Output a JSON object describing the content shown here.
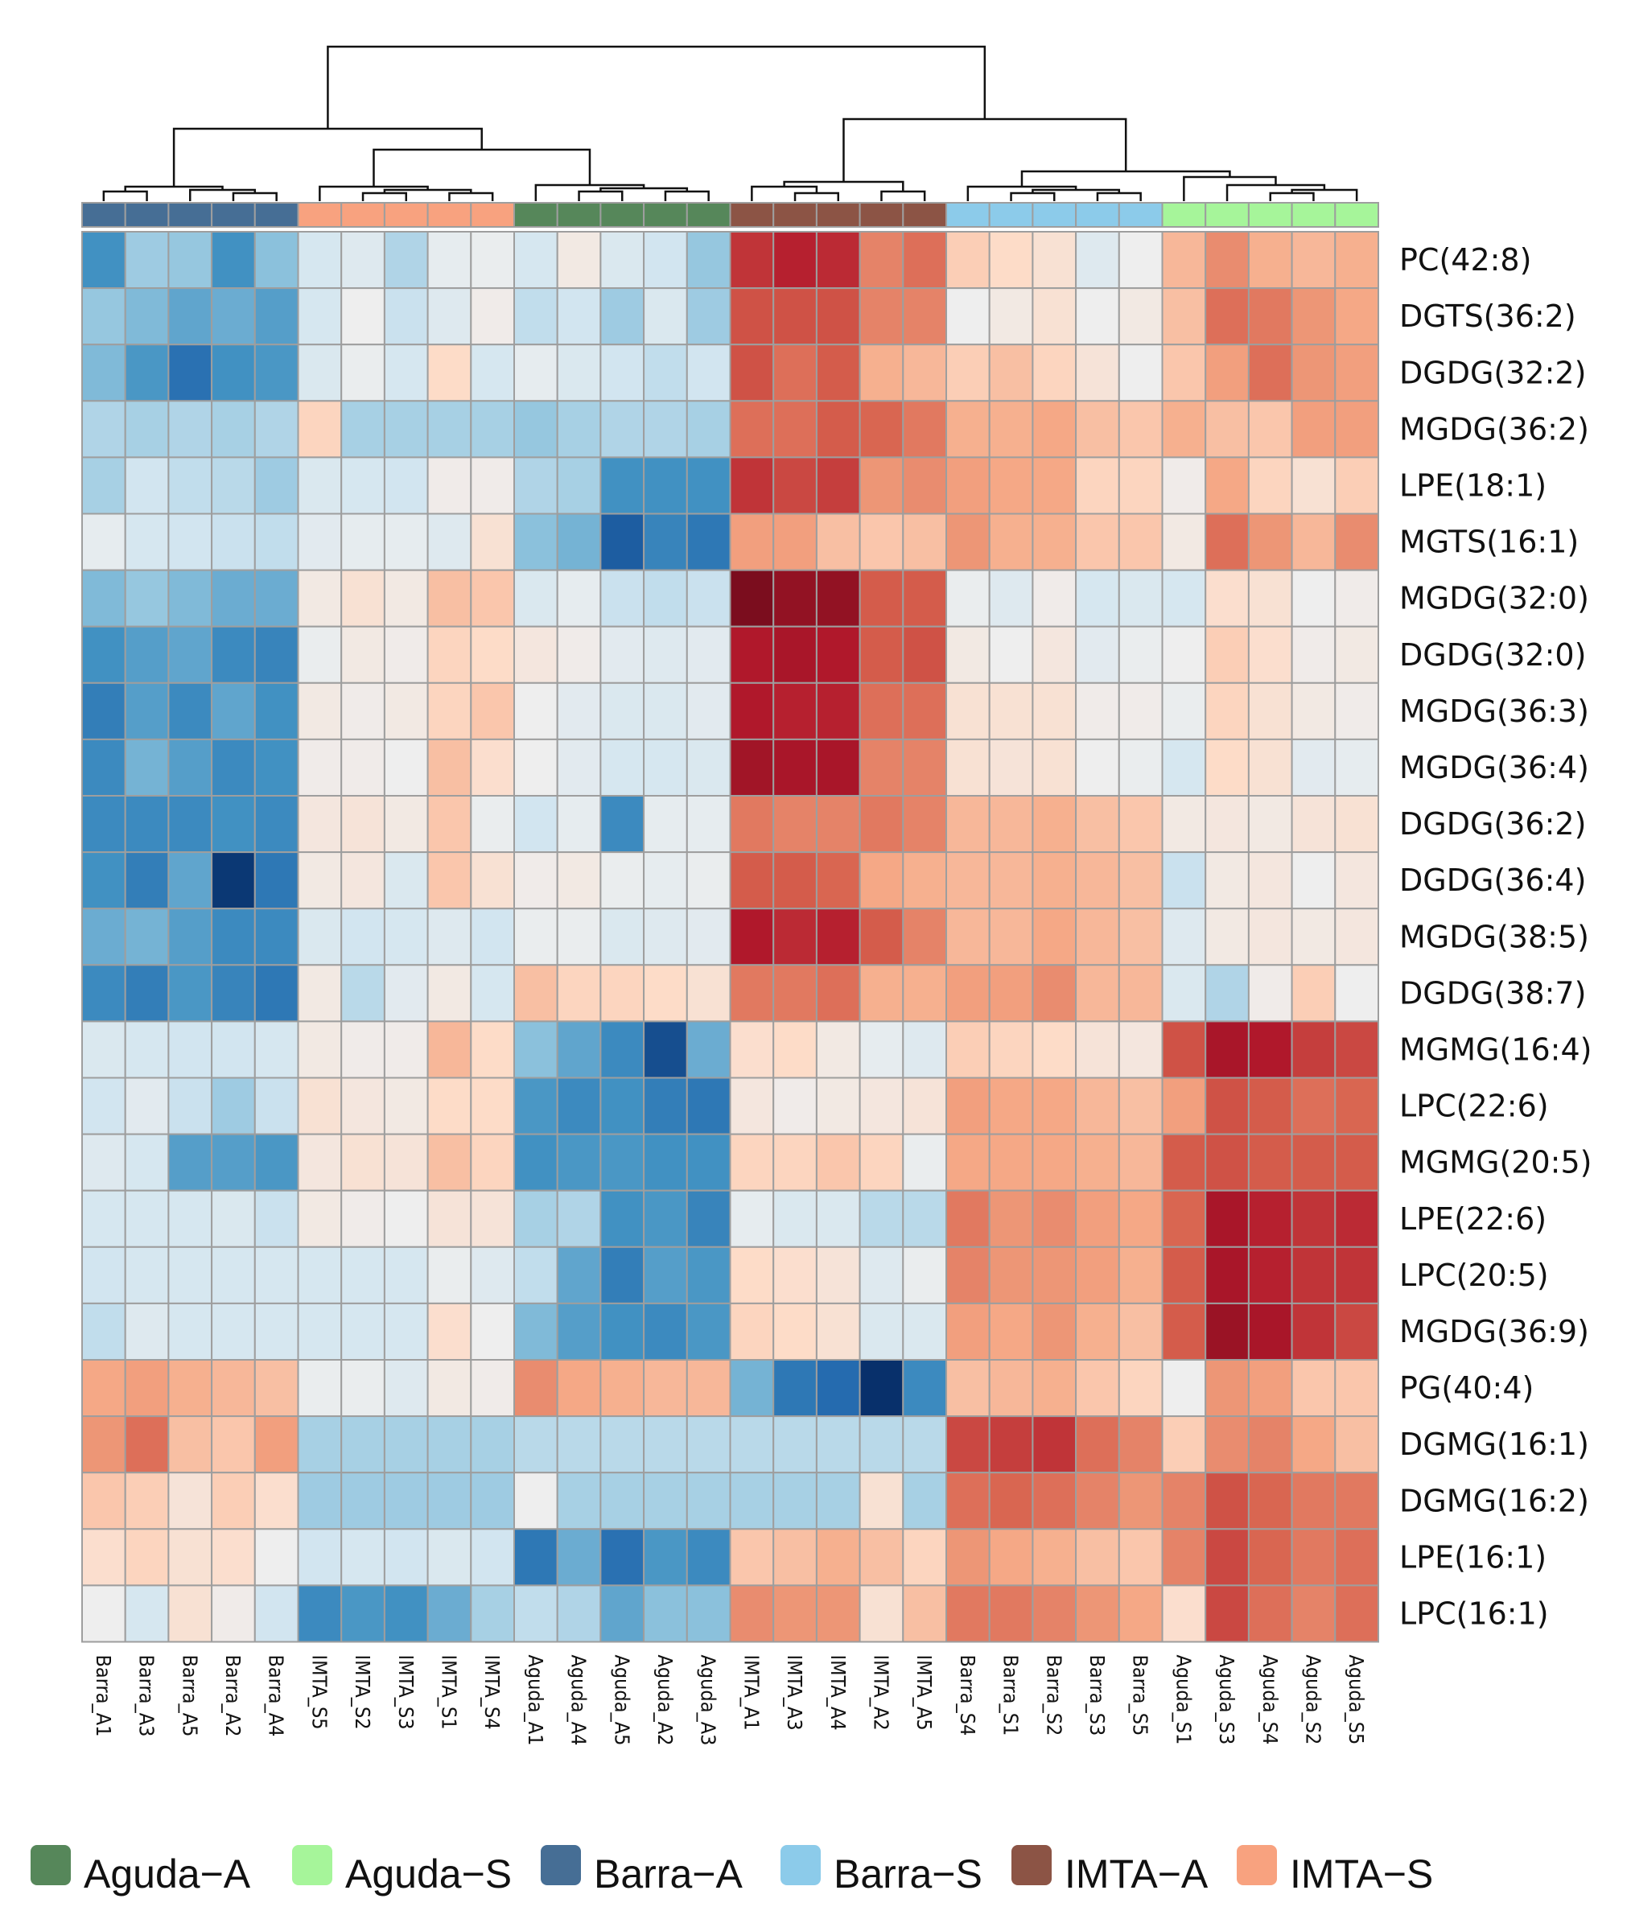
{
  "chart_data": {
    "type": "heatmap",
    "title": "",
    "columns": [
      "Barra_A1",
      "Barra_A3",
      "Barra_A5",
      "Barra_A2",
      "Barra_A4",
      "IMTA_S5",
      "IMTA_S2",
      "IMTA_S3",
      "IMTA_S1",
      "IMTA_S4",
      "Aguda_A1",
      "Aguda_A4",
      "Aguda_A5",
      "Aguda_A2",
      "Aguda_A3",
      "IMTA_A1",
      "IMTA_A3",
      "IMTA_A4",
      "IMTA_A2",
      "IMTA_A5",
      "Barra_S4",
      "Barra_S1",
      "Barra_S2",
      "Barra_S3",
      "Barra_S5",
      "Aguda_S1",
      "Aguda_S3",
      "Aguda_S4",
      "Aguda_S2",
      "Aguda_S5"
    ],
    "column_groups": [
      "Barra−A",
      "Barra−A",
      "Barra−A",
      "Barra−A",
      "Barra−A",
      "IMTA−S",
      "IMTA−S",
      "IMTA−S",
      "IMTA−S",
      "IMTA−S",
      "Aguda−A",
      "Aguda−A",
      "Aguda−A",
      "Aguda−A",
      "Aguda−A",
      "IMTA−A",
      "IMTA−A",
      "IMTA−A",
      "IMTA−A",
      "IMTA−A",
      "Barra−S",
      "Barra−S",
      "Barra−S",
      "Barra−S",
      "Barra−S",
      "Aguda−S",
      "Aguda−S",
      "Aguda−S",
      "Aguda−S",
      "Aguda−S"
    ],
    "rows": [
      "PC(42:8)",
      "DGTS(36:2)",
      "DGDG(32:2)",
      "MGDG(36:2)",
      "LPE(18:1)",
      "MGTS(16:1)",
      "MGDG(32:0)",
      "DGDG(32:0)",
      "MGDG(36:3)",
      "MGDG(36:4)",
      "DGDG(36:2)",
      "DGDG(36:4)",
      "MGDG(38:5)",
      "DGDG(38:7)",
      "MGMG(16:4)",
      "LPC(22:6)",
      "MGMG(20:5)",
      "LPE(22:6)",
      "LPC(20:5)",
      "MGDG(36:9)",
      "PG(40:4)",
      "DGMG(16:1)",
      "DGMG(16:2)",
      "LPE(16:1)",
      "LPC(16:1)"
    ],
    "values": [
      [
        -2.2,
        -1.3,
        -1.4,
        -2.2,
        -1.5,
        -0.6,
        -0.4,
        -1.1,
        -0.2,
        -0.1,
        -0.6,
        0.2,
        -0.5,
        -0.7,
        -1.4,
        2.6,
        2.8,
        2.7,
        1.8,
        2.0,
        0.9,
        0.7,
        0.5,
        -0.4,
        0.0,
        1.2,
        1.7,
        1.3,
        1.2,
        1.3
      ],
      [
        -1.4,
        -1.6,
        -1.9,
        -1.8,
        -2.0,
        -0.6,
        0.0,
        -0.8,
        -0.4,
        0.1,
        -0.9,
        -0.7,
        -1.3,
        -0.5,
        -1.3,
        2.3,
        2.3,
        2.3,
        1.8,
        1.8,
        0.0,
        0.2,
        0.5,
        0.0,
        0.2,
        1.1,
        2.0,
        1.9,
        1.6,
        1.4
      ],
      [
        -1.6,
        -2.1,
        -2.7,
        -2.2,
        -2.1,
        -0.5,
        -0.1,
        -0.6,
        0.7,
        -0.6,
        -0.2,
        -0.5,
        -0.7,
        -0.9,
        -0.7,
        2.3,
        2.0,
        2.2,
        1.3,
        1.2,
        0.9,
        1.1,
        0.8,
        0.4,
        0.0,
        1.0,
        1.5,
        2.0,
        1.6,
        1.5
      ],
      [
        -1.1,
        -1.2,
        -1.1,
        -1.2,
        -1.1,
        0.8,
        -1.2,
        -1.2,
        -1.2,
        -1.2,
        -1.4,
        -1.2,
        -1.1,
        -1.1,
        -1.2,
        2.0,
        2.0,
        2.2,
        2.1,
        1.9,
        1.3,
        1.3,
        1.4,
        1.1,
        1.0,
        1.3,
        1.1,
        1.0,
        1.5,
        1.5
      ],
      [
        -1.2,
        -0.7,
        -0.9,
        -1.0,
        -1.3,
        -0.5,
        -0.6,
        -0.7,
        0.1,
        0.1,
        -1.1,
        -1.2,
        -2.2,
        -2.2,
        -2.2,
        2.6,
        2.4,
        2.5,
        1.6,
        1.7,
        1.5,
        1.4,
        1.4,
        0.8,
        0.8,
        0.1,
        1.4,
        0.8,
        0.5,
        0.9
      ],
      [
        -0.2,
        -0.6,
        -0.7,
        -0.8,
        -0.9,
        -0.3,
        -0.2,
        -0.2,
        -0.4,
        0.5,
        -1.5,
        -1.7,
        -3.0,
        -2.4,
        -2.6,
        1.5,
        1.5,
        1.1,
        1.0,
        1.1,
        1.6,
        1.3,
        1.3,
        1.0,
        1.0,
        0.2,
        2.0,
        1.6,
        1.2,
        1.7
      ],
      [
        -1.6,
        -1.4,
        -1.6,
        -1.8,
        -1.8,
        0.2,
        0.5,
        0.2,
        1.1,
        1.0,
        -0.5,
        -0.2,
        -0.8,
        -0.9,
        -0.8,
        3.6,
        3.3,
        3.3,
        2.2,
        2.2,
        -0.1,
        -0.4,
        0.1,
        -0.6,
        -0.5,
        -0.6,
        0.6,
        0.5,
        0.0,
        0.1
      ],
      [
        -2.2,
        -2.0,
        -1.9,
        -2.3,
        -2.4,
        -0.1,
        0.2,
        0.1,
        0.8,
        0.7,
        0.3,
        0.1,
        -0.3,
        -0.4,
        -0.3,
        2.9,
        3.0,
        2.9,
        2.2,
        2.3,
        0.2,
        0.0,
        0.3,
        -0.3,
        -0.1,
        0.0,
        0.9,
        0.6,
        0.1,
        0.2
      ],
      [
        -2.5,
        -2.0,
        -2.3,
        -1.9,
        -2.2,
        0.2,
        0.1,
        0.2,
        0.8,
        1.0,
        0.0,
        -0.3,
        -0.5,
        -0.5,
        -0.3,
        2.9,
        2.8,
        2.8,
        2.0,
        2.0,
        0.5,
        0.5,
        0.5,
        0.1,
        0.1,
        -0.1,
        0.8,
        0.5,
        0.2,
        0.1
      ],
      [
        -2.3,
        -1.7,
        -2.0,
        -2.3,
        -2.2,
        0.1,
        0.1,
        0.0,
        1.1,
        0.6,
        0.0,
        -0.3,
        -0.6,
        -0.6,
        -0.5,
        3.1,
        3.0,
        3.0,
        1.8,
        1.8,
        0.5,
        0.4,
        0.5,
        0.0,
        -0.1,
        -0.6,
        0.7,
        0.5,
        -0.3,
        -0.2
      ],
      [
        -2.3,
        -2.3,
        -2.3,
        -2.2,
        -2.3,
        0.3,
        0.4,
        0.2,
        1.0,
        -0.1,
        -0.7,
        -0.2,
        -2.3,
        -0.2,
        -0.2,
        1.9,
        1.8,
        1.8,
        1.9,
        1.8,
        1.2,
        1.2,
        1.3,
        1.1,
        1.0,
        0.2,
        0.3,
        0.2,
        0.4,
        0.5
      ],
      [
        -2.2,
        -2.5,
        -1.9,
        -3.5,
        -2.6,
        0.2,
        0.3,
        -0.5,
        1.0,
        0.5,
        0.1,
        0.2,
        -0.1,
        -0.2,
        -0.1,
        2.2,
        2.2,
        2.1,
        1.4,
        1.3,
        1.2,
        1.2,
        1.3,
        1.2,
        1.1,
        -0.8,
        0.2,
        0.3,
        0.0,
        0.3
      ],
      [
        -1.8,
        -1.7,
        -2.0,
        -2.3,
        -2.3,
        -0.5,
        -0.7,
        -0.6,
        -0.4,
        -0.7,
        -0.1,
        -0.1,
        -0.5,
        -0.4,
        -0.3,
        2.9,
        2.7,
        2.8,
        2.2,
        1.8,
        1.2,
        1.2,
        1.4,
        1.2,
        1.1,
        -0.4,
        0.2,
        0.3,
        0.2,
        0.3
      ],
      [
        -2.3,
        -2.5,
        -2.1,
        -2.4,
        -2.6,
        0.2,
        -1.0,
        -0.3,
        0.2,
        -0.6,
        1.1,
        0.8,
        0.8,
        0.7,
        0.5,
        1.9,
        1.9,
        2.0,
        1.3,
        1.3,
        1.5,
        1.5,
        1.7,
        1.2,
        1.2,
        -0.5,
        -1.1,
        0.1,
        0.9,
        0.0
      ],
      [
        -0.5,
        -0.6,
        -0.7,
        -0.7,
        -0.6,
        0.2,
        0.1,
        0.1,
        1.2,
        0.7,
        -1.5,
        -1.9,
        -2.3,
        -3.2,
        -1.8,
        0.6,
        0.7,
        0.2,
        -0.2,
        -0.4,
        0.9,
        0.8,
        0.7,
        0.4,
        0.3,
        2.3,
        3.0,
        2.9,
        2.5,
        2.4
      ],
      [
        -0.7,
        -0.3,
        -0.8,
        -1.3,
        -0.8,
        0.5,
        0.3,
        0.2,
        0.7,
        0.7,
        -2.1,
        -2.3,
        -2.2,
        -2.5,
        -2.6,
        0.3,
        0.1,
        0.2,
        0.3,
        0.4,
        1.5,
        1.4,
        1.4,
        1.2,
        1.1,
        1.5,
        2.3,
        2.2,
        2.0,
        2.1
      ],
      [
        -0.4,
        -0.6,
        -2.0,
        -2.0,
        -2.1,
        0.3,
        0.5,
        0.4,
        1.1,
        0.8,
        -2.2,
        -2.1,
        -2.1,
        -2.2,
        -2.2,
        0.8,
        0.8,
        1.0,
        0.8,
        -0.1,
        1.4,
        1.4,
        1.4,
        1.3,
        1.2,
        2.2,
        2.3,
        2.2,
        2.2,
        2.2
      ],
      [
        -0.6,
        -0.6,
        -0.6,
        -0.5,
        -0.8,
        0.2,
        0.1,
        0.0,
        0.4,
        0.4,
        -1.2,
        -1.1,
        -2.2,
        -2.1,
        -2.4,
        -0.2,
        -0.5,
        -0.5,
        -1.0,
        -1.0,
        1.9,
        1.6,
        1.7,
        1.5,
        1.4,
        2.1,
        3.0,
        2.8,
        2.6,
        2.7
      ],
      [
        -0.7,
        -0.6,
        -0.6,
        -0.6,
        -0.6,
        -0.6,
        -0.6,
        -0.6,
        -0.1,
        -0.4,
        -0.9,
        -1.9,
        -2.5,
        -2.0,
        -2.1,
        0.7,
        0.6,
        0.4,
        -0.4,
        -0.1,
        1.8,
        1.6,
        1.6,
        1.5,
        1.3,
        2.2,
        3.0,
        2.8,
        2.6,
        2.6
      ],
      [
        -0.9,
        -0.4,
        -0.6,
        -0.6,
        -0.6,
        -0.6,
        -0.6,
        -0.6,
        0.6,
        0.0,
        -1.6,
        -2.0,
        -2.2,
        -2.3,
        -2.1,
        0.8,
        0.7,
        0.5,
        -0.5,
        -0.5,
        1.5,
        1.4,
        1.6,
        1.3,
        1.1,
        2.2,
        3.2,
        3.0,
        2.6,
        2.4
      ],
      [
        1.4,
        1.5,
        1.3,
        1.2,
        1.1,
        -0.1,
        -0.1,
        -0.4,
        0.2,
        0.1,
        1.7,
        1.4,
        1.3,
        1.2,
        1.2,
        -1.7,
        -2.6,
        -2.8,
        -3.6,
        -2.3,
        1.1,
        1.2,
        1.3,
        1.0,
        0.8,
        0.0,
        1.6,
        1.5,
        1.0,
        1.0
      ],
      [
        1.6,
        2.0,
        1.1,
        1.0,
        1.5,
        -1.2,
        -1.2,
        -1.2,
        -1.2,
        -1.2,
        -1.0,
        -1.0,
        -1.0,
        -1.0,
        -1.0,
        -1.0,
        -1.0,
        -1.0,
        -1.0,
        -1.0,
        2.4,
        2.5,
        2.6,
        2.0,
        1.8,
        0.9,
        1.7,
        1.8,
        1.4,
        1.1
      ],
      [
        1.0,
        0.9,
        0.4,
        0.9,
        0.6,
        -1.3,
        -1.3,
        -1.3,
        -1.3,
        -1.3,
        0.0,
        -1.2,
        -1.2,
        -1.2,
        -1.2,
        -1.2,
        -1.2,
        -1.2,
        0.5,
        -1.2,
        2.0,
        2.1,
        2.0,
        1.8,
        1.6,
        1.8,
        2.3,
        2.1,
        1.9,
        1.9
      ],
      [
        0.6,
        0.8,
        0.5,
        0.6,
        0.0,
        -0.7,
        -0.6,
        -0.7,
        -0.5,
        -0.7,
        -2.6,
        -1.8,
        -2.7,
        -2.1,
        -2.3,
        1.0,
        1.1,
        1.3,
        1.1,
        0.8,
        1.6,
        1.4,
        1.3,
        1.1,
        1.0,
        1.8,
        2.4,
        2.1,
        1.9,
        2.0
      ],
      [
        0.0,
        -0.6,
        0.5,
        0.1,
        -0.7,
        -2.3,
        -2.1,
        -2.2,
        -1.8,
        -1.2,
        -0.9,
        -1.1,
        -1.9,
        -1.5,
        -1.5,
        1.7,
        1.6,
        1.6,
        0.5,
        1.1,
        1.9,
        1.9,
        1.8,
        1.6,
        1.4,
        0.6,
        2.4,
        2.0,
        1.8,
        2.0
      ]
    ],
    "group_colors": {
      "Aguda−A": "#56875A",
      "Aguda−S": "#A6F59A",
      "Barra−A": "#466E95",
      "Barra−S": "#8CCBEA",
      "IMTA−A": "#8C5445",
      "IMTA−S": "#F8A27F"
    },
    "legend": {
      "position": "bottom",
      "items": [
        "Aguda−A",
        "Aguda−S",
        "Barra−A",
        "Barra−S",
        "IMTA−A",
        "IMTA−S"
      ]
    },
    "color_scale": {
      "low": "#08306B",
      "mid": "#EEEEEE",
      "high": "#7B0D1E",
      "range": [
        -3.6,
        3.6
      ]
    },
    "dendrogram": "columns",
    "grid_color": "#9E9E9E"
  }
}
